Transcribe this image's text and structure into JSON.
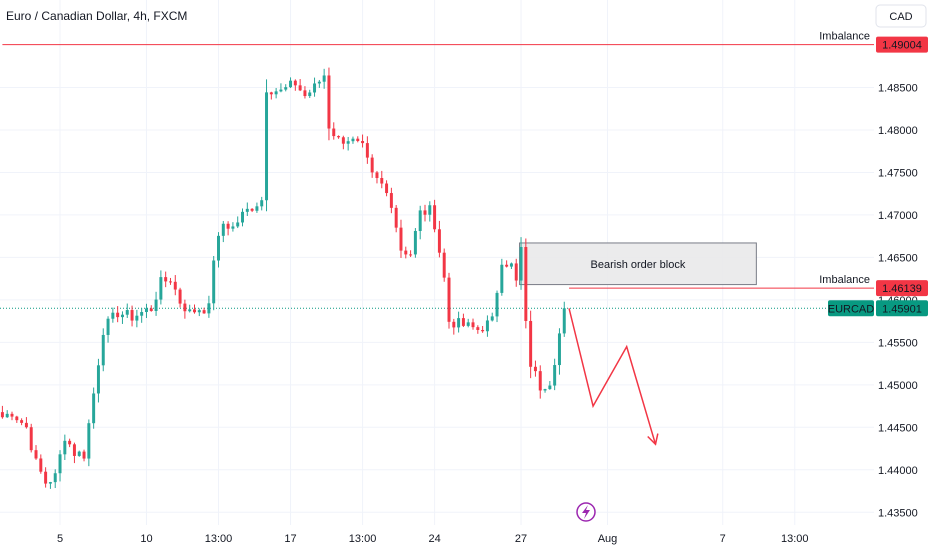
{
  "header": {
    "title": "Euro / Canadian Dollar, 4h, FXCM",
    "currency_button": "CAD"
  },
  "colors": {
    "bull": "#26a69a",
    "bear": "#f23645",
    "annotation": "#f23645",
    "grid": "#f0f3fa",
    "price_line": "#089981",
    "zone_fill": "#e9e9ea",
    "zone_stroke": "#787b86",
    "idea_icon": "#9c27b0"
  },
  "chart_data": {
    "type": "candlestick",
    "symbol": "EURCAD",
    "timeframe": "4h",
    "source": "FXCM",
    "y_axis": {
      "ylim": [
        1.4335,
        1.4953
      ],
      "ticks": [
        "1.48500",
        "1.48000",
        "1.47500",
        "1.47000",
        "1.46500",
        "1.46000",
        "1.45500",
        "1.45000",
        "1.44500",
        "1.44000",
        "1.43500"
      ],
      "tick_values": [
        1.485,
        1.48,
        1.475,
        1.47,
        1.465,
        1.46,
        1.455,
        1.45,
        1.445,
        1.44,
        1.435
      ]
    },
    "x_axis": {
      "bar_count": 182,
      "ticks": [
        {
          "label": "5",
          "bar": 12
        },
        {
          "label": "10",
          "bar": 30
        },
        {
          "label": "13:00",
          "bar": 45
        },
        {
          "label": "17",
          "bar": 60
        },
        {
          "label": "13:00",
          "bar": 75
        },
        {
          "label": "24",
          "bar": 90
        },
        {
          "label": "27",
          "bar": 108
        },
        {
          "label": "Aug",
          "bar": 126
        },
        {
          "label": "7",
          "bar": 150
        },
        {
          "label": "13:00",
          "bar": 165
        }
      ]
    },
    "anchors": [
      [
        0,
        1.4462
      ],
      [
        2,
        1.4468
      ],
      [
        5,
        1.445
      ],
      [
        7,
        1.4408
      ],
      [
        9,
        1.4385
      ],
      [
        11,
        1.4392
      ],
      [
        13,
        1.444
      ],
      [
        15,
        1.442
      ],
      [
        17,
        1.4418
      ],
      [
        19,
        1.449
      ],
      [
        21,
        1.4565
      ],
      [
        24,
        1.4585
      ],
      [
        27,
        1.458
      ],
      [
        31,
        1.459
      ],
      [
        33,
        1.462
      ],
      [
        35,
        1.4625
      ],
      [
        37,
        1.4598
      ],
      [
        39,
        1.4585
      ],
      [
        41,
        1.459
      ],
      [
        43,
        1.459
      ],
      [
        44,
        1.465
      ],
      [
        46,
        1.469
      ],
      [
        48,
        1.4685
      ],
      [
        50,
        1.47
      ],
      [
        52,
        1.471
      ],
      [
        54,
        1.4718
      ],
      [
        55,
        1.485
      ],
      [
        58,
        1.4845
      ],
      [
        61,
        1.4855
      ],
      [
        63,
        1.484
      ],
      [
        65,
        1.485
      ],
      [
        67,
        1.4865
      ],
      [
        68,
        1.4805
      ],
      [
        70,
        1.4788
      ],
      [
        72,
        1.479
      ],
      [
        75,
        1.4778
      ],
      [
        77,
        1.4745
      ],
      [
        79,
        1.4735
      ],
      [
        81,
        1.4715
      ],
      [
        83,
        1.466
      ],
      [
        85,
        1.4655
      ],
      [
        87,
        1.4702
      ],
      [
        89,
        1.4705
      ],
      [
        90,
        1.469
      ],
      [
        92,
        1.4625
      ],
      [
        93,
        1.4575
      ],
      [
        96,
        1.457
      ],
      [
        99,
        1.4565
      ],
      [
        102,
        1.4575
      ],
      [
        104,
        1.4648
      ],
      [
        106,
        1.464
      ],
      [
        107,
        1.462
      ],
      [
        108,
        1.466
      ],
      [
        109,
        1.457
      ],
      [
        110,
        1.4525
      ],
      [
        112,
        1.4498
      ],
      [
        114,
        1.4505
      ],
      [
        115,
        1.453
      ],
      [
        117,
        1.459
      ]
    ],
    "current_price": 1.45901,
    "current_price_label": "1.45901",
    "symbol_tag": "EURCAD",
    "annotations": {
      "zone": {
        "label": "Bearish order block",
        "start_bar": 108,
        "end_bar": 157,
        "top": 1.4667,
        "bottom": 1.4618
      },
      "imbalance_levels": [
        {
          "label": "Imbalance",
          "price": 1.49004,
          "price_label": "1.49004",
          "start_bar": 0
        },
        {
          "label": "Imbalance",
          "price": 1.46139,
          "price_label": "1.46139",
          "start_bar": 118
        }
      ],
      "projection": [
        [
          118,
          1.459
        ],
        [
          123,
          1.4475
        ],
        [
          130,
          1.4545
        ],
        [
          136,
          1.443
        ]
      ]
    }
  }
}
